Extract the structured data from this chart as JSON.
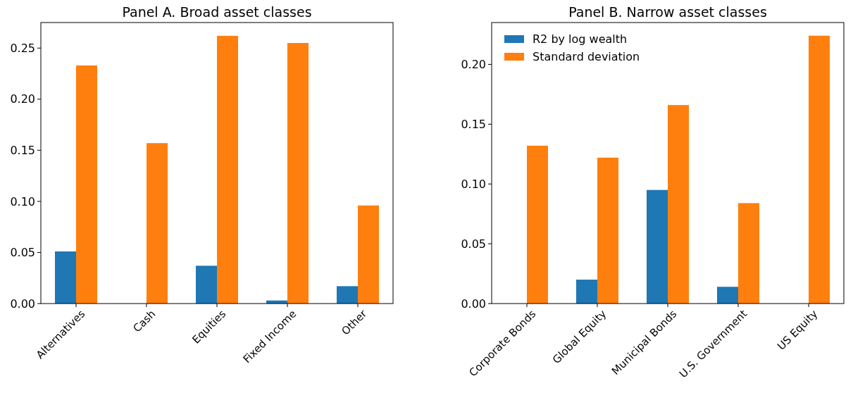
{
  "chart_data": [
    {
      "type": "bar",
      "title": "Panel A. Broad asset classes",
      "categories": [
        "Alternatives",
        "Cash",
        "Equities",
        "Fixed Income",
        "Other"
      ],
      "series": [
        {
          "color": "#1f77b4",
          "values": [
            0.051,
            0,
            0.037,
            0.003,
            0.017
          ]
        },
        {
          "color": "#ff7f0e",
          "values": [
            0.233,
            0.157,
            0.262,
            0.255,
            0.096
          ]
        }
      ],
      "ylim": [
        0,
        0.275
      ],
      "yticks": [
        {
          "value": 0,
          "label": "0.00"
        },
        {
          "value": 0.05,
          "label": "0.05"
        },
        {
          "value": 0.1,
          "label": "0.10"
        },
        {
          "value": 0.15,
          "label": "0.15"
        },
        {
          "value": 0.2,
          "label": "0.20"
        },
        {
          "value": 0.25,
          "label": "0.25"
        }
      ],
      "grid": false,
      "legend": false
    },
    {
      "type": "bar",
      "title": "Panel B. Narrow asset classes",
      "categories": [
        "Corporate Bonds",
        "Global Equity",
        "Municipal Bonds",
        "U.S. Government",
        "US Equity"
      ],
      "series": [
        {
          "name": "R2 by log wealth",
          "color": "#1f77b4",
          "values": [
            0,
            0.02,
            0.095,
            0.014,
            0
          ]
        },
        {
          "name": "Standard deviation",
          "color": "#ff7f0e",
          "values": [
            0.132,
            0.122,
            0.166,
            0.084,
            0.224
          ]
        }
      ],
      "ylim": [
        0,
        0.235
      ],
      "yticks": [
        {
          "value": 0,
          "label": "0.00"
        },
        {
          "value": 0.05,
          "label": "0.05"
        },
        {
          "value": 0.1,
          "label": "0.10"
        },
        {
          "value": 0.15,
          "label": "0.15"
        },
        {
          "value": 0.2,
          "label": "0.20"
        }
      ],
      "grid": false,
      "legend": "top left"
    }
  ]
}
